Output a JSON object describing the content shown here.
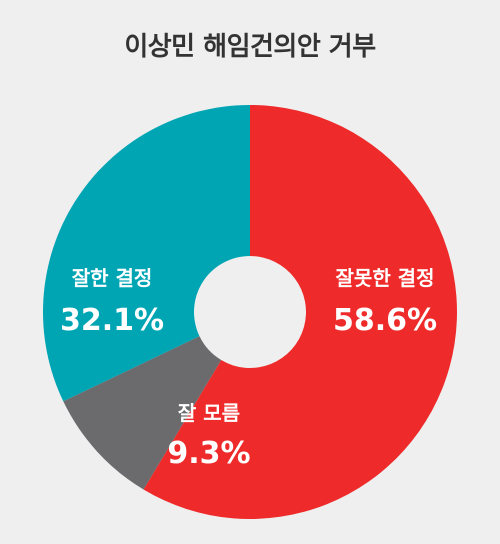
{
  "chart_data": {
    "type": "pie",
    "title": "이상민 해임건의안 거부",
    "slices": [
      {
        "label": "잘못한 결정",
        "value": 58.6,
        "value_text": "58.6%",
        "color": "#ee2a2a"
      },
      {
        "label": "잘 모름",
        "value": 9.3,
        "value_text": "9.3%",
        "color": "#6b6b6e"
      },
      {
        "label": "잘한 결정",
        "value": 32.1,
        "value_text": "32.1%",
        "color": "#00a5b4"
      }
    ],
    "legend": "none",
    "donut": true
  }
}
